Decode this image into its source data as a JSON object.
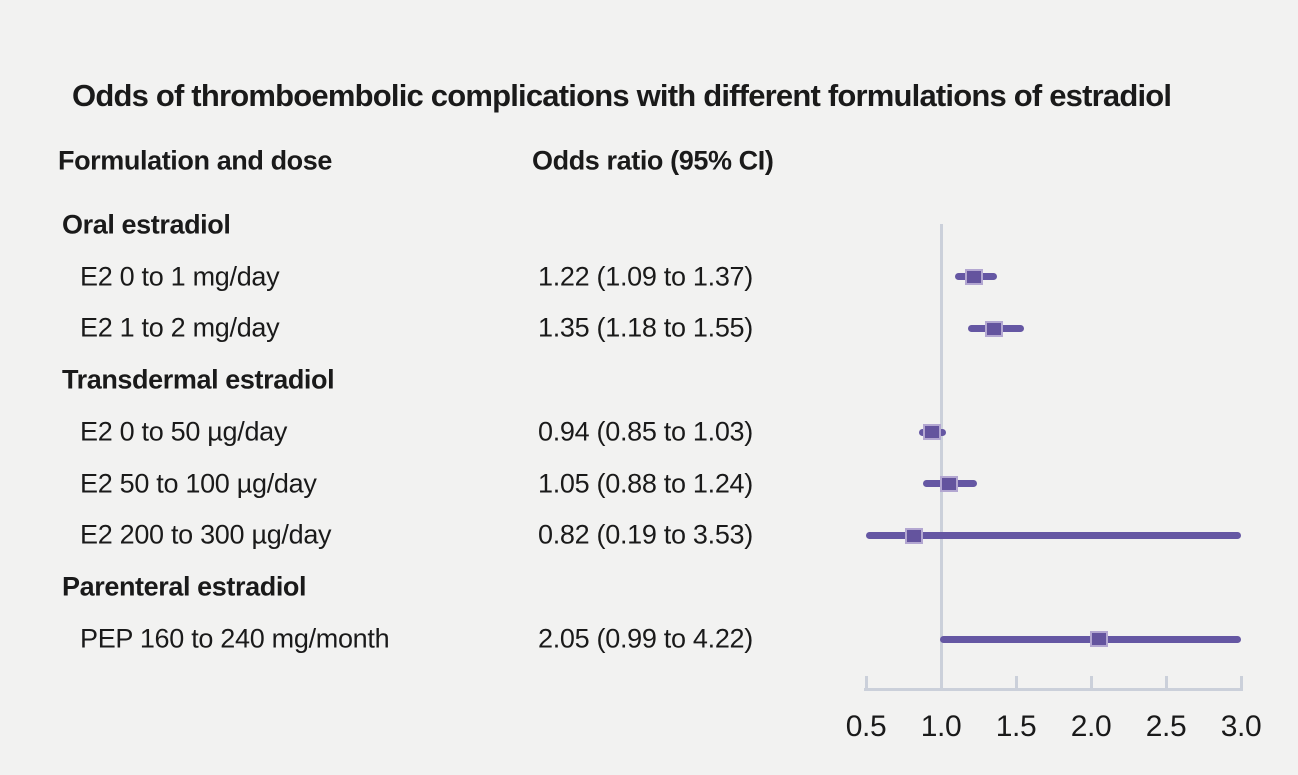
{
  "title": "Odds of thromboembolic complications with different formulations of estradiol",
  "columns": {
    "formulation": "Formulation and dose",
    "odds_ratio": "Odds ratio (95% CI)"
  },
  "rows": [
    {
      "label": "Oral estradiol",
      "group": true
    },
    {
      "label": "E2 0 to 1 mg/day",
      "value": "1.22 (1.09 to 1.37)"
    },
    {
      "label": "E2 1 to 2 mg/day",
      "value": "1.35 (1.18 to 1.55)"
    },
    {
      "label": "Transdermal estradiol",
      "group": true
    },
    {
      "label": "E2 0 to 50 µg/day",
      "value": "0.94 (0.85 to 1.03)"
    },
    {
      "label": "E2 50 to 100 µg/day",
      "value": "1.05 (0.88 to 1.24)"
    },
    {
      "label": "E2 200 to 300 µg/day",
      "value": "0.82 (0.19 to 3.53)"
    },
    {
      "label": "Parenteral estradiol",
      "group": true
    },
    {
      "label": "PEP 160 to 240 mg/month",
      "value": "2.05 (0.99 to 4.22)"
    }
  ],
  "chart_data": {
    "type": "scatter",
    "variant": "forest-plot",
    "title": "Odds of thromboembolic complications with different formulations of estradiol",
    "xlabel": "Odds ratio",
    "xlim": [
      0.5,
      3.0
    ],
    "reference_line": 1.0,
    "ticks": [
      0.5,
      1.0,
      1.5,
      2.0,
      2.5,
      3.0
    ],
    "tick_labels": [
      "0.5",
      "1.0",
      "1.5",
      "2.0",
      "2.5",
      "3.0"
    ],
    "grid": false,
    "legend": "none",
    "points": [
      {
        "row": 1,
        "label": "E2 0 to 1 mg/day",
        "est": 1.22,
        "lo": 1.09,
        "hi": 1.37
      },
      {
        "row": 2,
        "label": "E2 1 to 2 mg/day",
        "est": 1.35,
        "lo": 1.18,
        "hi": 1.55
      },
      {
        "row": 4,
        "label": "E2 0 to 50 µg/day",
        "est": 0.94,
        "lo": 0.85,
        "hi": 1.03
      },
      {
        "row": 5,
        "label": "E2 50 to 100 µg/day",
        "est": 1.05,
        "lo": 0.88,
        "hi": 1.24
      },
      {
        "row": 6,
        "label": "E2 200 to 300 µg/day",
        "est": 0.82,
        "lo": 0.19,
        "hi": 3.53
      },
      {
        "row": 8,
        "label": "PEP 160 to 240 mg/month",
        "est": 2.05,
        "lo": 0.99,
        "hi": 4.22
      }
    ]
  },
  "colors": {
    "background": "#f2f2f1",
    "text": "#1a1a1a",
    "ci_line": "#6557a3",
    "marker_fill": "#64549e",
    "marker_border": "#b3a7d1",
    "axis_gray": "#cbd0da"
  }
}
